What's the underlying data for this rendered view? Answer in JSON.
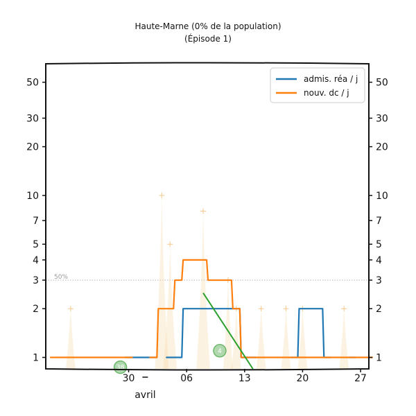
{
  "chart_data": {
    "type": "line",
    "title": "Haute-Marne (0% de la population)",
    "subtitle": "(Épisode 1)",
    "y_scale": "log",
    "ylim": [
      0.85,
      65
    ],
    "y_ticks": [
      1,
      2,
      3,
      4,
      5,
      7,
      10,
      20,
      30,
      50
    ],
    "x_range": [
      "2020-03-21",
      "2020-04-28"
    ],
    "x_ticks": [
      {
        "date": "2020-03-30",
        "label": "30"
      },
      {
        "date": "2020-04-06",
        "label": "06"
      },
      {
        "date": "2020-04-13",
        "label": "13"
      },
      {
        "date": "2020-04-20",
        "label": "20"
      },
      {
        "date": "2020-04-27",
        "label": "27"
      }
    ],
    "month_label": {
      "date": "2020-04-01",
      "text": "avril"
    },
    "reference_line": {
      "value": 3,
      "label": "50%"
    },
    "legend_position": "top-right",
    "series": [
      {
        "name": "admis. réa / j",
        "color": "#1f77b4",
        "segments": [
          [
            [
              "2020-03-30",
              1
            ],
            [
              "2020-03-31",
              1
            ],
            [
              "2020-04-01",
              1
            ],
            [
              "2020-04-02",
              1
            ]
          ],
          [
            [
              "2020-04-04",
              1
            ],
            [
              "2020-04-05",
              1
            ],
            [
              "2020-04-06",
              2
            ],
            [
              "2020-04-07",
              2
            ],
            [
              "2020-04-08",
              2
            ],
            [
              "2020-04-09",
              2
            ],
            [
              "2020-04-10",
              2
            ],
            [
              "2020-04-11",
              2
            ],
            [
              "2020-04-12",
              2
            ],
            [
              "2020-04-13",
              1
            ],
            [
              "2020-04-14",
              1
            ]
          ],
          [
            [
              "2020-04-19",
              1
            ],
            [
              "2020-04-20",
              2
            ],
            [
              "2020-04-21",
              2
            ],
            [
              "2020-04-22",
              2
            ],
            [
              "2020-04-23",
              1
            ]
          ],
          [
            [
              "2020-04-26",
              1
            ]
          ]
        ]
      },
      {
        "name": "nouv. dc / j",
        "color": "#ff7f0e",
        "segments": [
          [
            [
              "2020-03-21",
              1
            ],
            [
              "2020-03-22",
              1
            ],
            [
              "2020-03-23",
              1
            ],
            [
              "2020-03-24",
              1
            ],
            [
              "2020-03-25",
              1
            ],
            [
              "2020-03-26",
              1
            ],
            [
              "2020-03-27",
              1
            ],
            [
              "2020-03-28",
              1
            ],
            [
              "2020-03-29",
              1
            ],
            [
              "2020-03-30",
              1
            ]
          ],
          [
            [
              "2020-04-02",
              1
            ],
            [
              "2020-04-03",
              2
            ],
            [
              "2020-04-04",
              2
            ],
            [
              "2020-04-05",
              3
            ],
            [
              "2020-04-06",
              4
            ],
            [
              "2020-04-07",
              4
            ],
            [
              "2020-04-08",
              4
            ],
            [
              "2020-04-09",
              3
            ],
            [
              "2020-04-10",
              3
            ],
            [
              "2020-04-11",
              3
            ],
            [
              "2020-04-12",
              2
            ],
            [
              "2020-04-13",
              1
            ],
            [
              "2020-04-14",
              1
            ],
            [
              "2020-04-15",
              1
            ],
            [
              "2020-04-16",
              1
            ],
            [
              "2020-04-17",
              1
            ],
            [
              "2020-04-18",
              1
            ],
            [
              "2020-04-19",
              1
            ],
            [
              "2020-04-20",
              1
            ],
            [
              "2020-04-21",
              1
            ],
            [
              "2020-04-22",
              1
            ],
            [
              "2020-04-23",
              1
            ],
            [
              "2020-04-24",
              1
            ],
            [
              "2020-04-25",
              1
            ],
            [
              "2020-04-26",
              1
            ],
            [
              "2020-04-27",
              1
            ],
            [
              "2020-04-28",
              1
            ]
          ]
        ]
      }
    ],
    "trend_line": {
      "color": "#2ca02c",
      "points": [
        [
          "2020-04-08",
          2.5
        ],
        [
          "2020-04-14",
          0.85
        ]
      ]
    },
    "raw_daily_values": {
      "color": "#f5d9a8",
      "points": [
        [
          "2020-03-23",
          2
        ],
        [
          "2020-04-03",
          10
        ],
        [
          "2020-04-04",
          5
        ],
        [
          "2020-04-08",
          8
        ],
        [
          "2020-04-11",
          3
        ],
        [
          "2020-04-12",
          2
        ],
        [
          "2020-04-15",
          2
        ],
        [
          "2020-04-18",
          2
        ],
        [
          "2020-04-20",
          2
        ],
        [
          "2020-04-25",
          2
        ]
      ]
    },
    "markers": [
      {
        "date": "2020-03-29",
        "value": 0.87,
        "label": "38",
        "color": "#6db86b"
      },
      {
        "date": "2020-04-10",
        "value": 1.1,
        "label": "4",
        "color": "#6db86b"
      }
    ]
  }
}
